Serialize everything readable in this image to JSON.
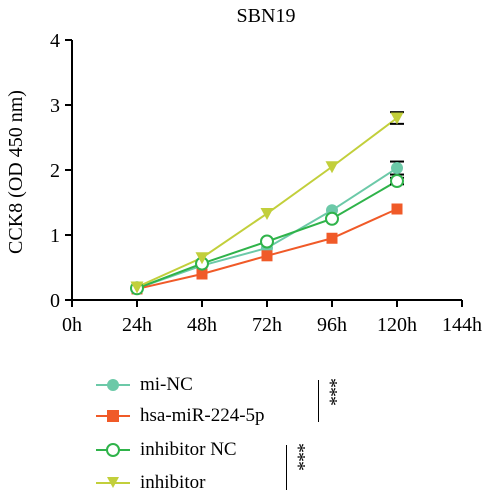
{
  "chart_data": {
    "type": "line",
    "title": "SBN19",
    "xlabel": "",
    "ylabel": "CCK8 (OD 450 nm)",
    "x_ticks": [
      "0h",
      "24h",
      "48h",
      "72h",
      "96h",
      "120h",
      "144h"
    ],
    "x_values": [
      24,
      48,
      72,
      96,
      120
    ],
    "xlim": [
      0,
      144
    ],
    "ylim": [
      0,
      4
    ],
    "y_ticks": [
      "0",
      "1",
      "2",
      "3",
      "4"
    ],
    "grid": false,
    "legend_position": "bottom-left",
    "series": [
      {
        "name": "mi-NC",
        "color": "#6cc9a8",
        "marker": "circle-filled",
        "values": [
          0.18,
          0.53,
          0.8,
          1.38,
          2.03
        ],
        "error": [
          0,
          0,
          0,
          0,
          0.1
        ]
      },
      {
        "name": "hsa-miR-224-5p",
        "color": "#f05a28",
        "marker": "square",
        "values": [
          0.17,
          0.4,
          0.68,
          0.95,
          1.4
        ],
        "error": [
          0,
          0,
          0,
          0,
          0
        ]
      },
      {
        "name": "inhibitor NC",
        "color": "#2fb34a",
        "marker": "circle-open",
        "values": [
          0.18,
          0.56,
          0.9,
          1.25,
          1.83
        ],
        "error": [
          0,
          0,
          0,
          0,
          0.05
        ]
      },
      {
        "name": "inhibitor",
        "color": "#c2cf3b",
        "marker": "triangle-down",
        "values": [
          0.2,
          0.65,
          1.33,
          2.05,
          2.8
        ],
        "error": [
          0,
          0,
          0,
          0,
          0.09
        ]
      }
    ],
    "significance": [
      "***",
      "***"
    ]
  }
}
